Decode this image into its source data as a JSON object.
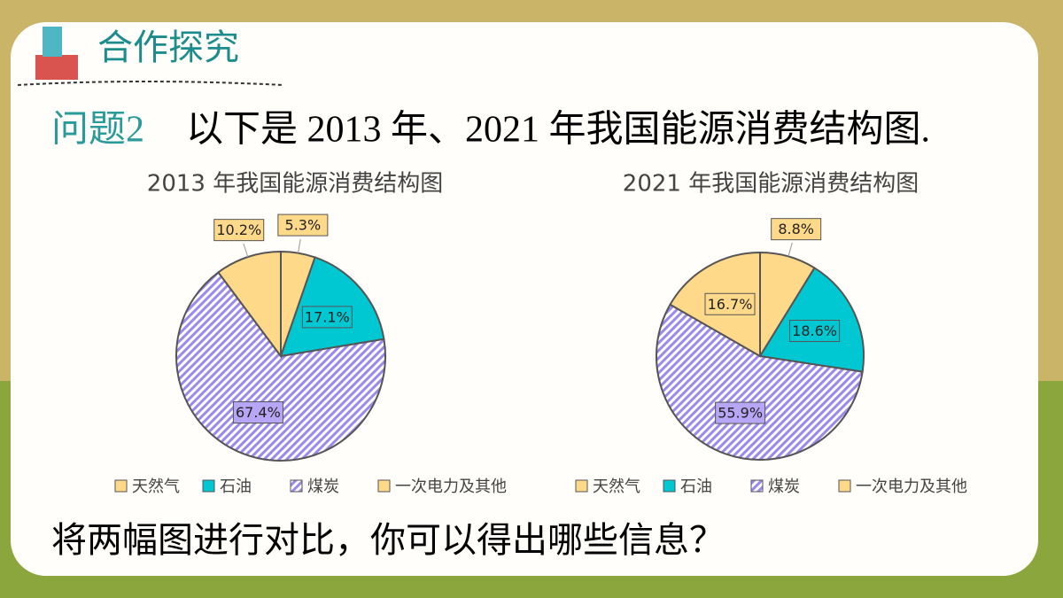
{
  "header": {
    "title": "合作探究"
  },
  "question": {
    "label": "问题2",
    "text": "以下是 2013 年、2021 年我国能源消费结构图."
  },
  "chart_data": [
    {
      "type": "pie",
      "title": "2013 年我国能源消费结构图",
      "categories": [
        "天然气",
        "石油",
        "煤炭",
        "一次电力及其他"
      ],
      "values": [
        5.3,
        17.1,
        67.4,
        10.2
      ],
      "value_labels": [
        "5.3%",
        "17.1%",
        "67.4%",
        "10.2%"
      ],
      "colors": [
        "#ffd98a",
        "#00c8d2",
        "#b7a6f5",
        "#ffd98a"
      ],
      "hatched": [
        false,
        false,
        true,
        false
      ]
    },
    {
      "type": "pie",
      "title": "2021 年我国能源消费结构图",
      "categories": [
        "天然气",
        "石油",
        "煤炭",
        "一次电力及其他"
      ],
      "values": [
        8.8,
        18.6,
        55.9,
        16.7
      ],
      "value_labels": [
        "8.8%",
        "18.6%",
        "55.9%",
        "16.7%"
      ],
      "colors": [
        "#ffd98a",
        "#00c8d2",
        "#b7a6f5",
        "#ffd98a"
      ],
      "hatched": [
        false,
        false,
        true,
        false
      ]
    }
  ],
  "prompt": "将两幅图进行对比，你可以得出哪些信息？"
}
